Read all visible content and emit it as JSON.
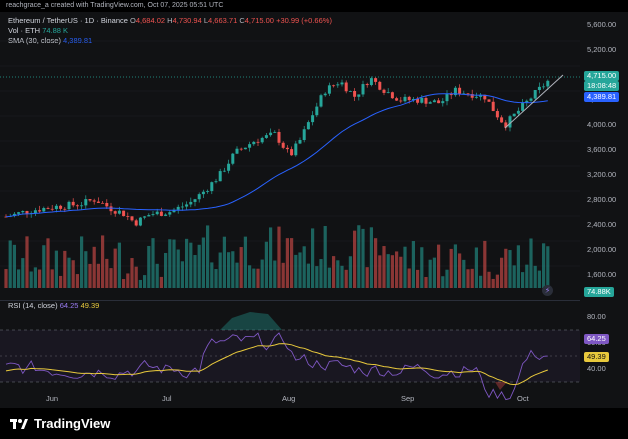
{
  "header": {
    "text": "reachgrace_a created with TradingView.com, Oct 07, 2025 05:51 UTC"
  },
  "legend": {
    "symbol": "Ethereum / TetherUS · 1D · Binance",
    "o_label": "O",
    "o": "4,684.02",
    "h_label": "H",
    "h": "4,730.94",
    "l_label": "L",
    "l": "4,663.71",
    "c_label": "C",
    "c": "4,715.00",
    "change": "+30.99 (+0.66%)",
    "vol_label": "Vol · ETH",
    "vol": "74.88 K",
    "sma_label": "SMA (30, close)",
    "sma": "4,389.81"
  },
  "rsi_legend": {
    "label": "RSI (14, close)",
    "rsi": "64.25",
    "ma": "49.39"
  },
  "price_axis": [
    "5,600.00",
    "5,200.00",
    "4,800.00",
    "4,400.00",
    "4,000.00",
    "3,600.00",
    "3,200.00",
    "2,800.00",
    "2,400.00",
    "2,000.00",
    "1,600.00"
  ],
  "rsi_axis": [
    "80.00",
    "60.00",
    "40.00"
  ],
  "time_axis": [
    "Jun",
    "Jul",
    "Aug",
    "Sep",
    "Oct"
  ],
  "tags": {
    "price": "4,715.00",
    "countdown": "18:08:48",
    "sma": "4,389.81",
    "volume": "74.88K",
    "rsi": "64.25",
    "rsi_ma": "49.39"
  },
  "colors": {
    "up": "#26a69a",
    "down": "#ef5350",
    "sma": "#2962ff",
    "rsi": "#7e57c2",
    "rsi_ma": "#e8c93c"
  },
  "footer": {
    "brand": "TradingView"
  }
}
